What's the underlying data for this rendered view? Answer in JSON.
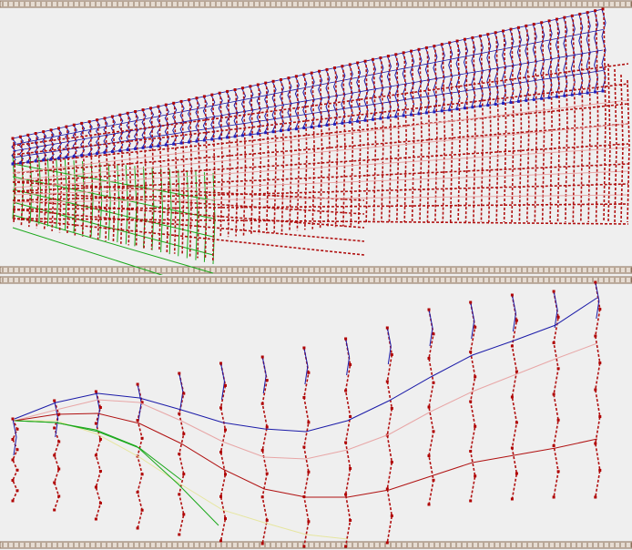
{
  "colors": {
    "background": "#efefef",
    "rail_fill": "#e6dcd2",
    "rail_stroke": "#8b6f5a",
    "blue_track": "#1a1aa8",
    "red_track": "#b01010",
    "pink_track": "#e8a6a6",
    "green_track": "#1aa81a",
    "yellow_track": "#e6e6a0",
    "node": "#b00000",
    "node_blue": "#2222bb"
  },
  "panels": [
    {
      "id": "perspective-lattice",
      "description_icon": "lattice-icon"
    },
    {
      "id": "side-view-lattice",
      "description_icon": "wave-icon"
    }
  ]
}
